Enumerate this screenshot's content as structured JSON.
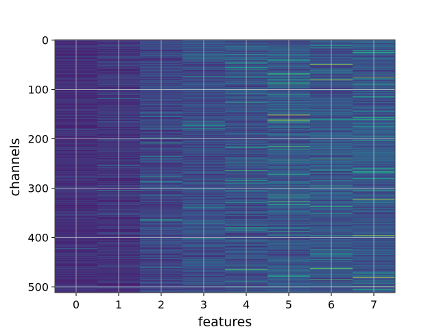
{
  "chart_data": {
    "type": "heatmap",
    "title": "",
    "xlabel": "features",
    "ylabel": "channels",
    "x_categories": [
      "0",
      "1",
      "2",
      "3",
      "4",
      "5",
      "6",
      "7"
    ],
    "y_ticks": [
      "0",
      "100",
      "200",
      "300",
      "400",
      "500"
    ],
    "n_channels": 512,
    "n_features": 8,
    "grid": true,
    "colormap": "viridis",
    "colors": {
      "low": "#3b3f8c",
      "mid": "#2c7f8e",
      "high": "#fde725",
      "grid": "#d9d9d9",
      "frame": "#444444"
    },
    "feature_mean_intensity": [
      0.06,
      0.09,
      0.16,
      0.2,
      0.22,
      0.26,
      0.25,
      0.25
    ],
    "hot_rows": [
      {
        "feature": 5,
        "channel": 152,
        "value": 0.95
      },
      {
        "feature": 5,
        "channel": 162,
        "value": 0.95
      },
      {
        "feature": 6,
        "channel": 50,
        "value": 0.9
      },
      {
        "feature": 6,
        "channel": 81,
        "value": 0.9
      },
      {
        "feature": 6,
        "channel": 462,
        "value": 0.8
      },
      {
        "feature": 7,
        "channel": 75,
        "value": 0.85
      },
      {
        "feature": 7,
        "channel": 322,
        "value": 0.95
      },
      {
        "feature": 7,
        "channel": 396,
        "value": 0.85
      },
      {
        "feature": 7,
        "channel": 480,
        "value": 0.95
      },
      {
        "feature": 4,
        "channel": 465,
        "value": 0.75
      },
      {
        "feature": 4,
        "channel": 218,
        "value": 0.6
      },
      {
        "feature": 4,
        "channel": 55,
        "value": 0.55
      }
    ]
  }
}
